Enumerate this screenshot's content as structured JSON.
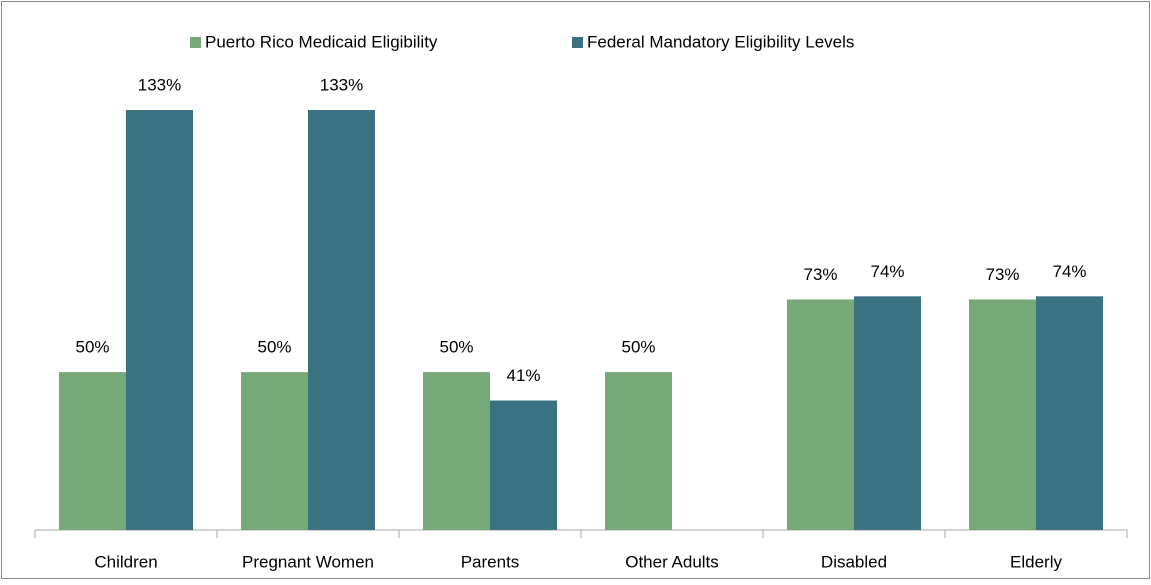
{
  "chart_data": {
    "type": "bar",
    "categories": [
      "Children",
      "Pregnant Women",
      "Parents",
      "Other Adults",
      "Disabled",
      "Elderly"
    ],
    "series": [
      {
        "name": "Puerto Rico Medicaid Eligibility",
        "color": "#77a877",
        "values": [
          50,
          50,
          50,
          50,
          73,
          73
        ],
        "value_labels": [
          "50%",
          "50%",
          "50%",
          "50%",
          "73%",
          "73%"
        ]
      },
      {
        "name": "Federal Mandatory Eligibility Levels",
        "color": "#3b7282",
        "values": [
          133,
          133,
          41,
          null,
          74,
          74
        ],
        "value_labels": [
          "133%",
          "133%",
          "41%",
          null,
          "74%",
          "74%"
        ]
      }
    ],
    "legend": "top"
  }
}
